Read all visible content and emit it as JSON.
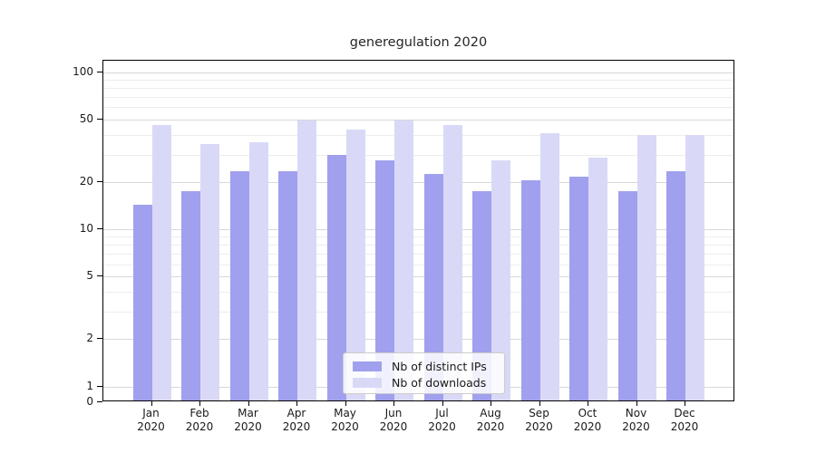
{
  "chart_data": {
    "type": "bar",
    "title": "generegulation 2020",
    "categories": [
      "Jan",
      "Feb",
      "Mar",
      "Apr",
      "May",
      "Jun",
      "Jul",
      "Aug",
      "Sep",
      "Oct",
      "Nov",
      "Dec"
    ],
    "year_label": "2020",
    "series": [
      {
        "name": "Nb of distinct IPs",
        "color": "#a0a0ee",
        "values": [
          14,
          17,
          23,
          23,
          29,
          27,
          22,
          17,
          20,
          21,
          17,
          23
        ]
      },
      {
        "name": "Nb of downloads",
        "color": "#d9d9f7",
        "values": [
          45,
          34,
          35,
          48,
          42,
          48,
          45,
          27,
          40,
          28,
          39,
          39
        ]
      }
    ],
    "yscale": "symlog",
    "yticks_major": [
      100,
      50,
      20,
      10,
      5,
      2,
      1,
      0
    ],
    "gridlines_minor": [
      90,
      80,
      70,
      60,
      40,
      30,
      9,
      8,
      7,
      6,
      4,
      3
    ],
    "ylim": [
      0,
      119
    ],
    "grid": true,
    "legend_position": "lower center"
  },
  "colors": {
    "major_grid": "#d8d8d8",
    "minor_grid": "#ededed",
    "axis": "#000000",
    "text": "#1a1a1a",
    "legend_border": "#cccccc",
    "background": "#ffffff"
  }
}
